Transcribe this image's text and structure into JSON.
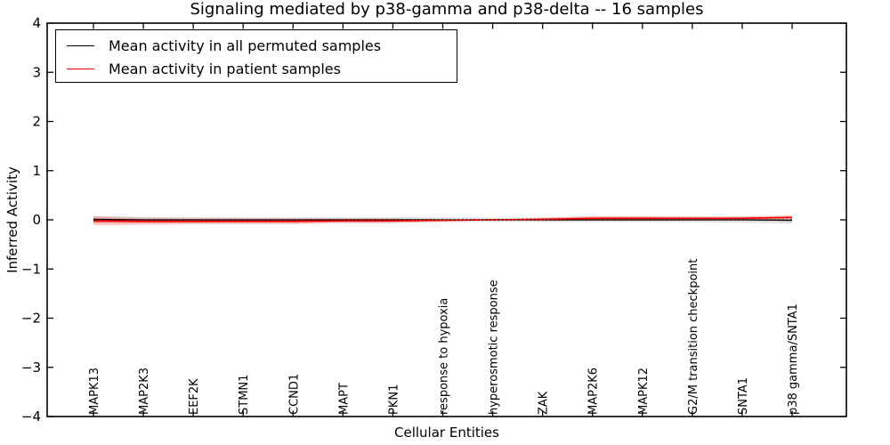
{
  "chart_data": {
    "type": "line",
    "title": "Signaling mediated by p38-gamma and p38-delta -- 16 samples",
    "xlabel": "Cellular Entities",
    "ylabel": "Inferred Activity",
    "ylim": [
      -4,
      4
    ],
    "yticks": [
      -4,
      -3,
      -2,
      -1,
      0,
      1,
      2,
      3,
      4
    ],
    "ytick_labels": [
      "−4",
      "−3",
      "−2",
      "−1",
      "0",
      "1",
      "2",
      "3",
      "4"
    ],
    "grid": false,
    "categories": [
      "MAPK13",
      "MAP2K3",
      "EEF2K",
      "STMN1",
      "CCND1",
      "MAPT",
      "PKN1",
      "response to hypoxia",
      "hyperosmotic response",
      "ZAK",
      "MAP2K6",
      "MAPK12",
      "G2/M transition checkpoint",
      "SNTA1",
      "p38 gamma/SNTA1"
    ],
    "series": [
      {
        "name": "Mean activity in all permuted samples",
        "color": "#000000",
        "line_style": "solid",
        "mean": [
          0.01,
          0.0,
          0.0,
          0.0,
          0.0,
          0.0,
          0.0,
          0.0,
          0.0,
          0.0,
          0.0,
          0.0,
          0.0,
          0.0,
          -0.01
        ],
        "std": [
          0.07,
          0.06,
          0.06,
          0.05,
          0.05,
          0.05,
          0.05,
          0.05,
          0.04,
          0.05,
          0.05,
          0.05,
          0.05,
          0.06,
          0.07
        ],
        "band_color": "#999999",
        "band_alpha": 0.3
      },
      {
        "name": "Mean activity in patient samples",
        "color": "#ff0000",
        "line_style": "solid",
        "mean": [
          -0.02,
          -0.03,
          -0.03,
          -0.03,
          -0.03,
          -0.02,
          -0.02,
          -0.01,
          0.0,
          0.01,
          0.03,
          0.03,
          0.03,
          0.03,
          0.05
        ],
        "std": [
          0.09,
          0.07,
          0.06,
          0.06,
          0.06,
          0.05,
          0.05,
          0.02,
          0.01,
          0.03,
          0.05,
          0.05,
          0.04,
          0.04,
          0.04
        ],
        "band_color": "#ff0000",
        "band_alpha": 0.22
      }
    ],
    "reference_line": {
      "y": 0,
      "color": "#000000",
      "line_style": "dotted"
    },
    "legend": {
      "position": "upper left",
      "entries": [
        {
          "label": "Mean activity in all permuted samples",
          "color": "#000000"
        },
        {
          "label": "Mean activity in patient samples",
          "color": "#ff0000"
        }
      ]
    }
  }
}
